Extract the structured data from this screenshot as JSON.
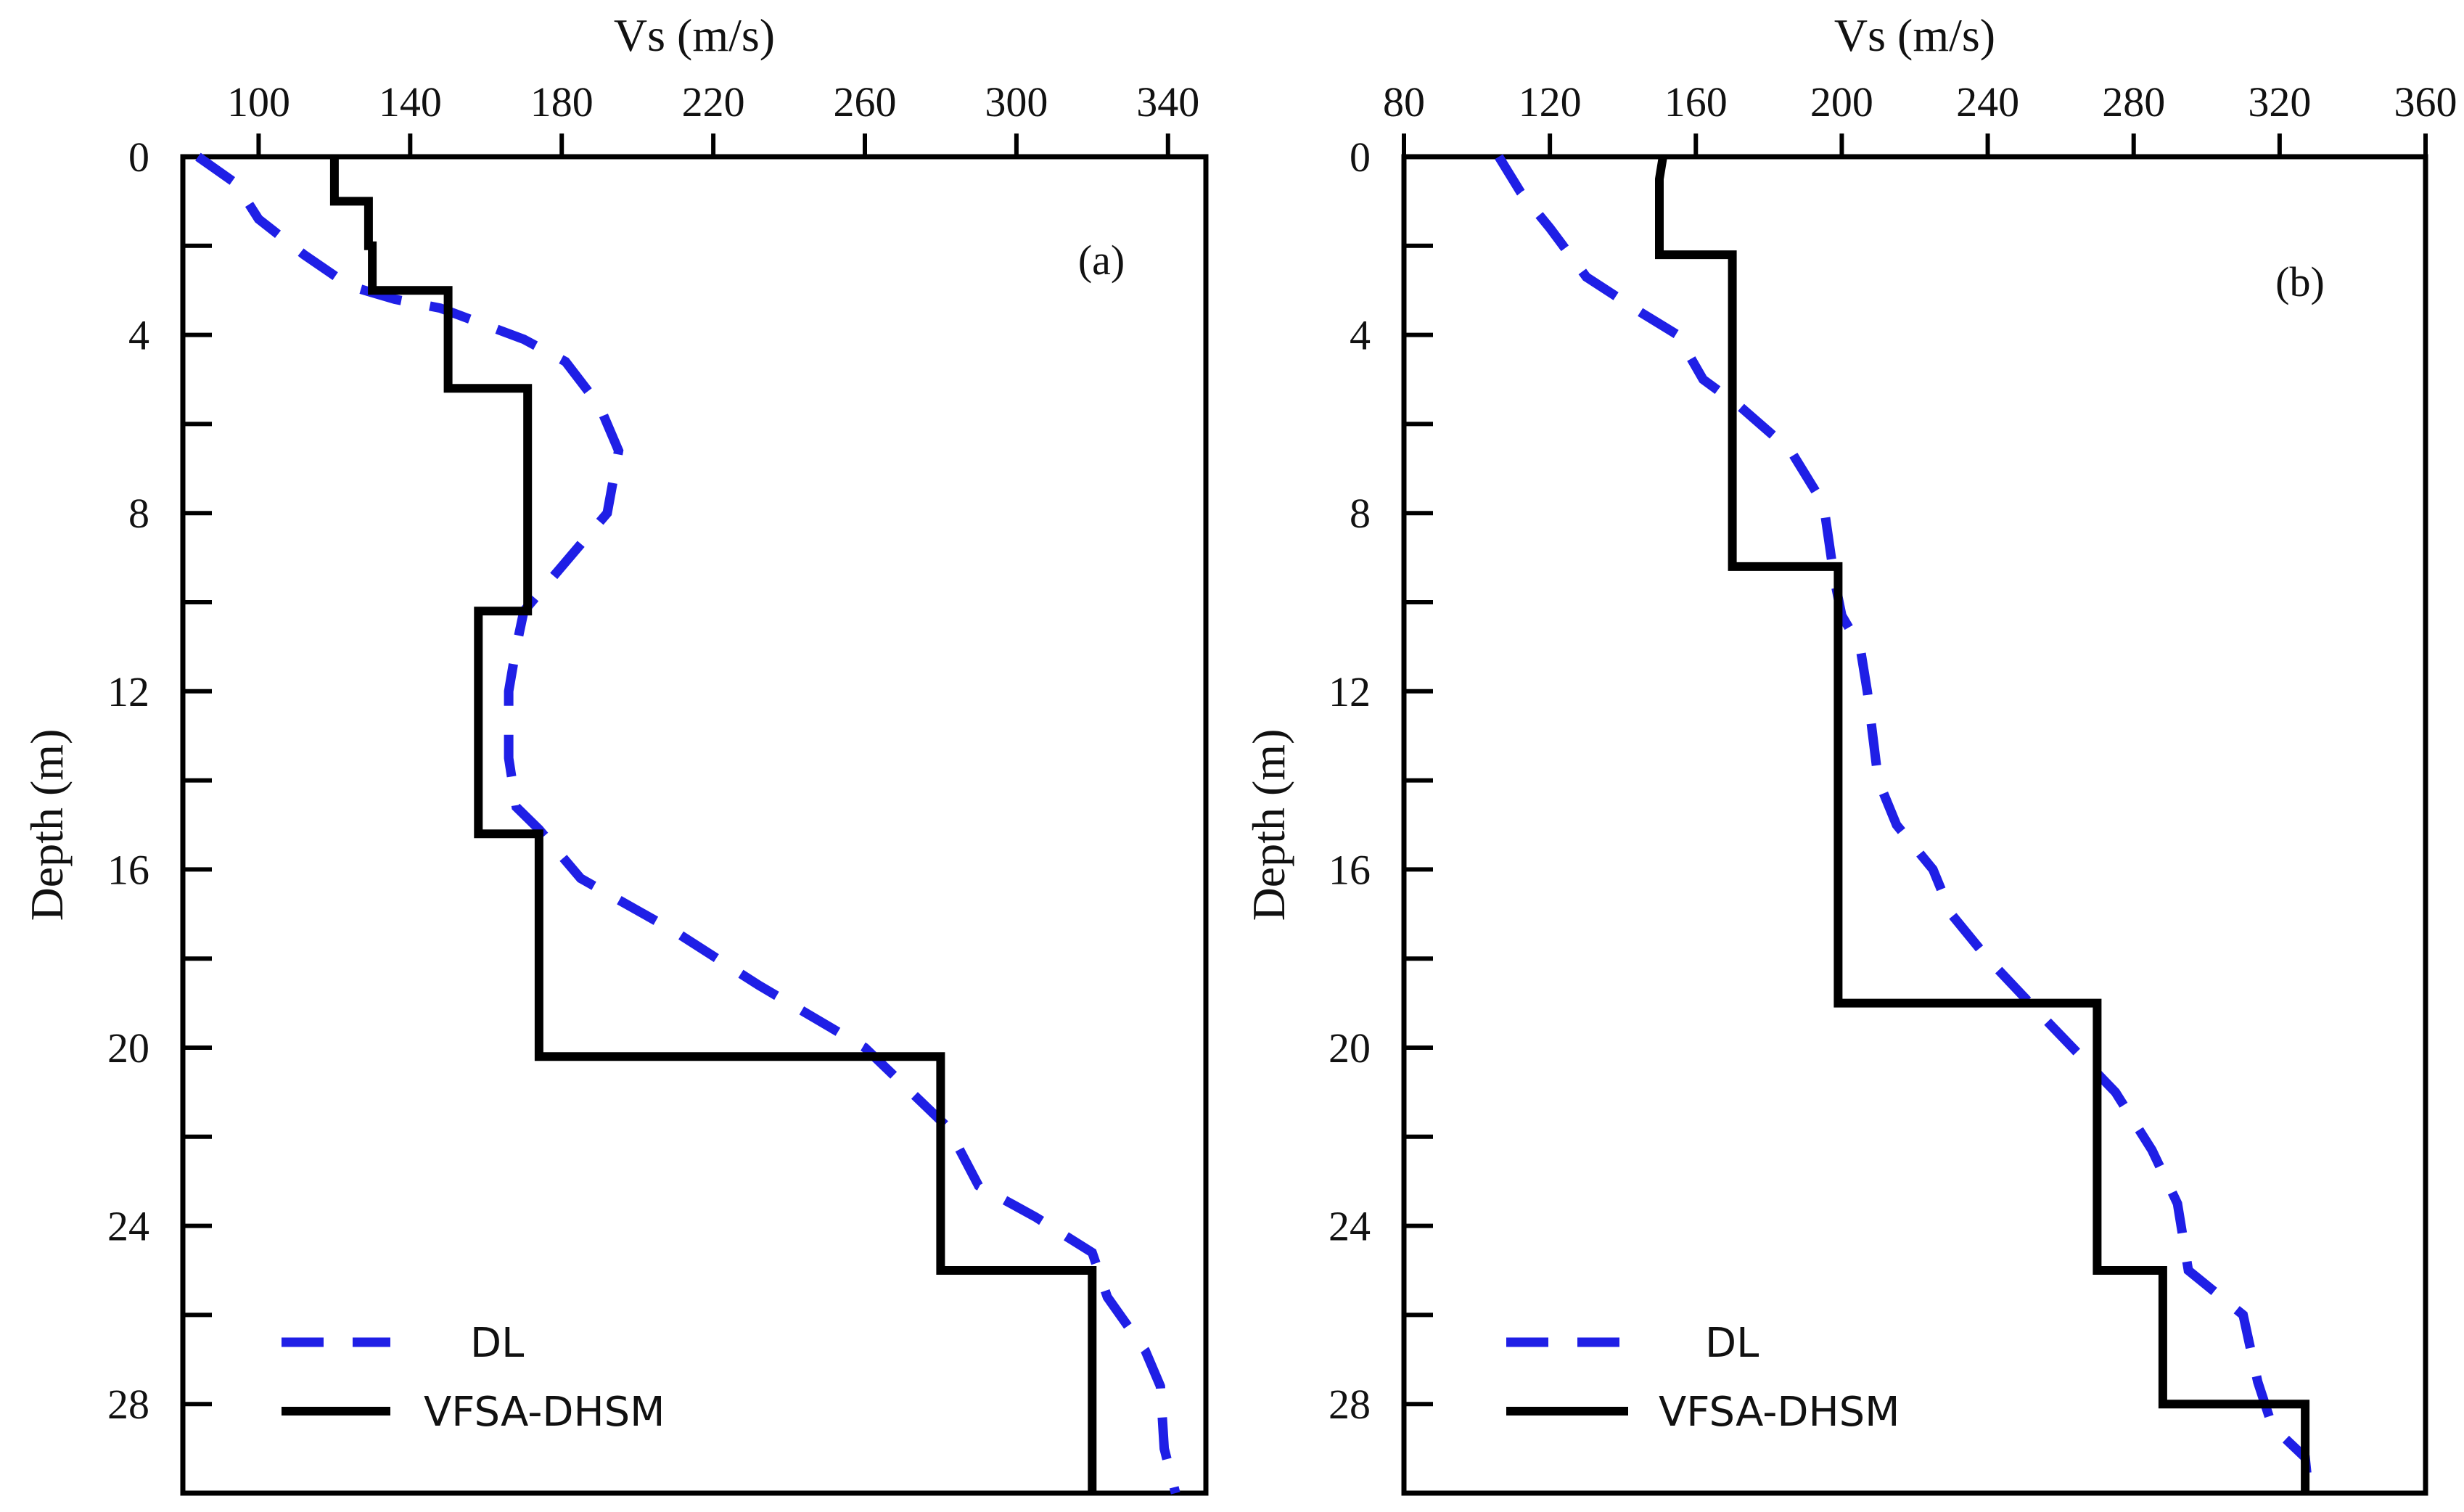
{
  "colors": {
    "dl": "#1f1fe6",
    "vfsa": "#000000",
    "axis": "#000000"
  },
  "chart_data": [
    {
      "type": "line",
      "panel_label": "(a)",
      "xlabel": "Vs  (m/s)",
      "ylabel": "Depth  (m)",
      "xlim": [
        80,
        350
      ],
      "ylim": [
        0,
        30
      ],
      "x_ticks": [
        "100",
        "140",
        "180",
        "220",
        "260",
        "300",
        "340"
      ],
      "x_tick_values": [
        100,
        140,
        180,
        220,
        260,
        300,
        340
      ],
      "y_ticks": [
        "0",
        "4",
        "8",
        "12",
        "16",
        "20",
        "24",
        "28"
      ],
      "y_tick_values": [
        0,
        4,
        8,
        12,
        16,
        20,
        24,
        28
      ],
      "y_minor_tick_values": [
        2,
        6,
        10,
        14,
        18,
        22,
        26
      ],
      "legend": {
        "position": "bottom-left",
        "entries": [
          "DL",
          "VFSA-DHSM"
        ]
      },
      "series": [
        {
          "name": "DL",
          "style": "dashed",
          "points": [
            [
              84,
              0
            ],
            [
              94,
              0.6
            ],
            [
              100,
              1.4
            ],
            [
              112,
              2.2
            ],
            [
              124,
              2.9
            ],
            [
              136,
              3.2
            ],
            [
              148,
              3.4
            ],
            [
              170,
              4.1
            ],
            [
              181,
              4.6
            ],
            [
              190,
              5.6
            ],
            [
              195,
              6.6
            ],
            [
              192,
              8
            ],
            [
              180,
              9.2
            ],
            [
              170,
              10.2
            ],
            [
              168,
              11
            ],
            [
              166,
              12
            ],
            [
              166,
              13.5
            ],
            [
              168,
              14.6
            ],
            [
              174,
              15.1
            ],
            [
              185,
              16.2
            ],
            [
              210,
              17.4
            ],
            [
              232,
              18.6
            ],
            [
              260,
              20
            ],
            [
              282,
              21.8
            ],
            [
              290,
              23.1
            ],
            [
              305,
              23.8
            ],
            [
              320,
              24.6
            ],
            [
              324,
              25.6
            ],
            [
              334,
              26.8
            ],
            [
              338,
              27.6
            ],
            [
              339,
              29
            ],
            [
              342,
              30
            ]
          ]
        },
        {
          "name": "VFSA-DHSM",
          "style": "solid",
          "points": [
            [
              120,
              0
            ],
            [
              120,
              1
            ],
            [
              129,
              1
            ],
            [
              129,
              2
            ],
            [
              130,
              2
            ],
            [
              130,
              3
            ],
            [
              150,
              3
            ],
            [
              150,
              5.2
            ],
            [
              171,
              5.2
            ],
            [
              171,
              10.2
            ],
            [
              158,
              10.2
            ],
            [
              158,
              15.2
            ],
            [
              174,
              15.2
            ],
            [
              174,
              20.2
            ],
            [
              280,
              20.2
            ],
            [
              280,
              25
            ],
            [
              320,
              25
            ],
            [
              320,
              30
            ]
          ]
        }
      ]
    },
    {
      "type": "line",
      "panel_label": "(b)",
      "xlabel": "Vs  (m/s)",
      "ylabel": "Depth  (m)",
      "xlim": [
        80,
        360
      ],
      "ylim": [
        0,
        30
      ],
      "x_ticks": [
        "80",
        "120",
        "160",
        "200",
        "240",
        "280",
        "320",
        "360"
      ],
      "x_tick_values": [
        80,
        120,
        160,
        200,
        240,
        280,
        320,
        360
      ],
      "y_ticks": [
        "0",
        "4",
        "8",
        "12",
        "16",
        "20",
        "24",
        "28"
      ],
      "y_tick_values": [
        0,
        4,
        8,
        12,
        16,
        20,
        24,
        28
      ],
      "y_minor_tick_values": [
        2,
        6,
        10,
        14,
        18,
        22,
        26
      ],
      "legend": {
        "position": "bottom-left",
        "entries": [
          "DL",
          "VFSA-DHSM"
        ]
      },
      "series": [
        {
          "name": "DL",
          "style": "dashed",
          "points": [
            [
              106,
              0
            ],
            [
              112,
              0.8
            ],
            [
              120,
              1.6
            ],
            [
              130,
              2.7
            ],
            [
              145,
              3.5
            ],
            [
              155,
              4
            ],
            [
              162,
              5
            ],
            [
              172,
              5.6
            ],
            [
              186,
              6.6
            ],
            [
              195,
              7.8
            ],
            [
              198,
              9.5
            ],
            [
              200,
              10.3
            ],
            [
              205,
              11
            ],
            [
              207,
              12
            ],
            [
              210,
              14
            ],
            [
              215,
              15
            ],
            [
              225,
              16
            ],
            [
              230,
              17
            ],
            [
              240,
              18
            ],
            [
              255,
              19.3
            ],
            [
              275,
              21
            ],
            [
              285,
              22.3
            ],
            [
              292,
              23.5
            ],
            [
              295,
              25
            ],
            [
              310,
              26
            ],
            [
              314,
              27.5
            ],
            [
              318,
              28.5
            ],
            [
              327,
              29.2
            ],
            [
              328,
              30
            ]
          ]
        },
        {
          "name": "VFSA-DHSM",
          "style": "solid",
          "points": [
            [
              151,
              0
            ],
            [
              150,
              0.5
            ],
            [
              150,
              2.2
            ],
            [
              170,
              2.2
            ],
            [
              170,
              9.2
            ],
            [
              199,
              9.2
            ],
            [
              199,
              19
            ],
            [
              270,
              19
            ],
            [
              270,
              25
            ],
            [
              288,
              25
            ],
            [
              288,
              28
            ],
            [
              327,
              28
            ],
            [
              327,
              30
            ]
          ]
        }
      ]
    }
  ]
}
